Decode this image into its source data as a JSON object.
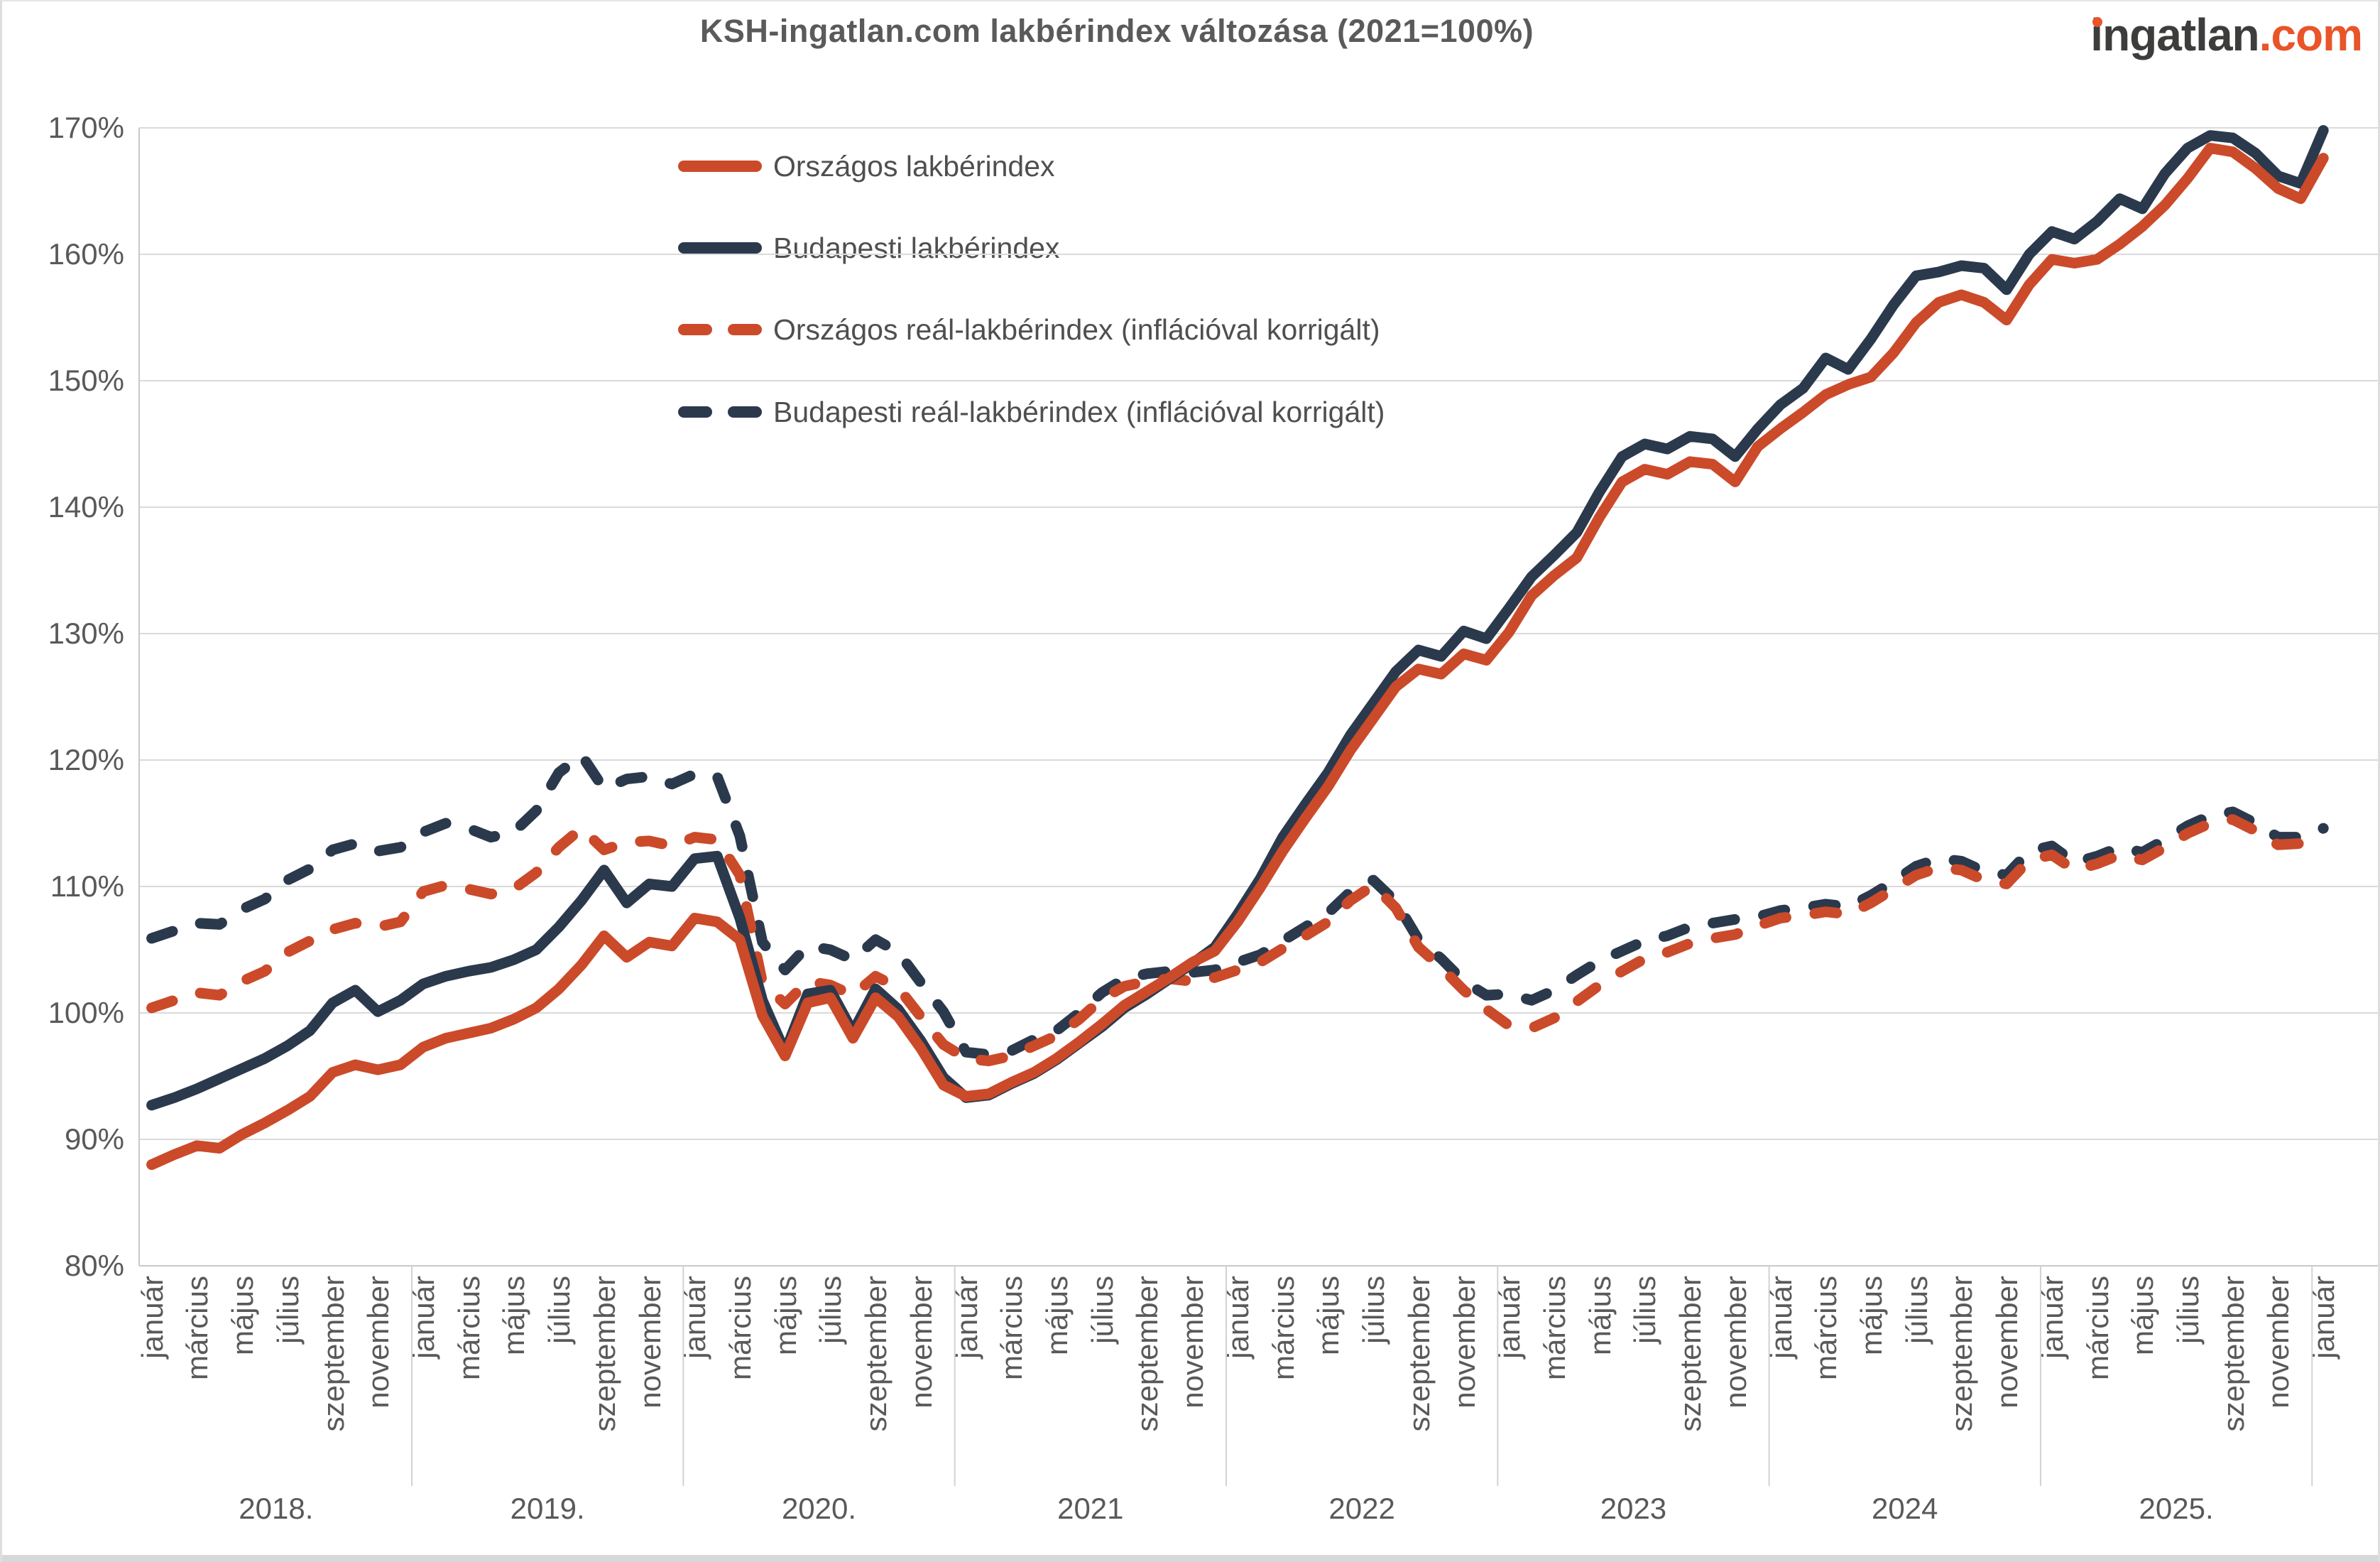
{
  "title": "KSH-ingatlan.com lakbérindex változása (2021=100%)",
  "logo": {
    "main": "ingatlan",
    "tld": ".com",
    "color_main": "#3d3d3c",
    "color_tld": "#e95428"
  },
  "colors": {
    "orange": "#cb4a2a",
    "navy": "#2b394d",
    "gridline": "#dadada",
    "axis_line": "#c9c9c9",
    "tick_text": "#595959",
    "title_text": "#5a5a5a"
  },
  "chart_data": {
    "type": "line",
    "title": "KSH-ingatlan.com lakbérindex változása (2021=100%)",
    "x_start": "2018-01",
    "x_end": "2026-01",
    "x_interval": "monthly",
    "points_per_series": 97,
    "ylim": [
      80,
      170
    ],
    "y_ticks": [
      170,
      160,
      150,
      140,
      130,
      120,
      110,
      100,
      90,
      80
    ],
    "y_tick_suffix": "%",
    "grid": "horizontal",
    "legend_position": "top-left-inside",
    "x_groups": [
      {
        "year": "2018.",
        "months": [
          "január",
          "március",
          "május",
          "július",
          "szeptember",
          "november"
        ]
      },
      {
        "year": "2019.",
        "months": [
          "január",
          "március",
          "május",
          "július",
          "szeptember",
          "november"
        ]
      },
      {
        "year": "2020.",
        "months": [
          "január",
          "március",
          "május",
          "július",
          "szeptember",
          "november"
        ]
      },
      {
        "year": "2021",
        "months": [
          "január",
          "március",
          "május",
          "július",
          "szeptember",
          "november"
        ]
      },
      {
        "year": "2022",
        "months": [
          "január",
          "március",
          "május",
          "július",
          "szeptember",
          "november"
        ]
      },
      {
        "year": "2023",
        "months": [
          "január",
          "március",
          "május",
          "július",
          "szeptember",
          "november"
        ]
      },
      {
        "year": "2024",
        "months": [
          "január",
          "március",
          "május",
          "július",
          "szeptember",
          "november"
        ]
      },
      {
        "year": "2025.",
        "months": [
          "január",
          "március",
          "május",
          "július",
          "szeptember",
          "november"
        ]
      },
      {
        "year": "",
        "months": [
          "január"
        ]
      }
    ],
    "series": [
      {
        "name": "Budapesti reál-lakbérindex (inflációval korrigált)",
        "style": "dashed",
        "color": "#2b394d",
        "values": [
          105.9,
          106.5,
          107.1,
          107.0,
          108.2,
          109.0,
          110.5,
          111.4,
          112.9,
          113.4,
          112.8,
          113.1,
          114.3,
          115.0,
          114.6,
          113.9,
          114.3,
          116.0,
          119.0,
          120.4,
          117.7,
          118.5,
          118.7,
          118.1,
          118.9,
          118.7,
          114.0,
          105.6,
          103.4,
          105.3,
          105.0,
          104.2,
          105.8,
          104.8,
          102.4,
          100.1,
          96.9,
          96.7,
          97.0,
          97.9,
          98.6,
          100.0,
          101.6,
          102.7,
          103.1,
          103.3,
          103.2,
          103.4,
          104.0,
          104.6,
          105.7,
          106.8,
          107.9,
          109.6,
          110.5,
          108.8,
          105.8,
          104.3,
          102.5,
          101.4,
          101.5,
          101.0,
          101.8,
          103.0,
          104.1,
          104.9,
          105.7,
          106.1,
          106.8,
          107.1,
          107.4,
          107.6,
          108.1,
          108.3,
          108.6,
          108.4,
          109.3,
          110.4,
          111.6,
          112.2,
          112.0,
          111.2,
          110.9,
          112.8,
          113.2,
          111.9,
          112.4,
          113.1,
          112.7,
          113.7,
          114.8,
          115.6,
          115.9,
          115.0,
          113.9,
          113.9,
          114.6
        ]
      },
      {
        "name": "Országos reál-lakbérindex (inflációval korrigált)",
        "style": "dashed",
        "color": "#cb4a2a",
        "values": [
          100.4,
          101.0,
          101.6,
          101.4,
          102.5,
          103.3,
          104.8,
          105.7,
          106.6,
          107.1,
          106.8,
          107.2,
          109.6,
          110.1,
          109.8,
          109.4,
          109.8,
          111.1,
          113.1,
          114.6,
          112.9,
          113.5,
          113.6,
          113.2,
          113.9,
          113.7,
          110.9,
          102.4,
          100.7,
          102.5,
          102.2,
          101.4,
          102.9,
          102.0,
          99.7,
          97.5,
          96.4,
          96.2,
          96.6,
          97.4,
          98.2,
          99.5,
          101.1,
          102.1,
          102.5,
          102.7,
          102.5,
          102.8,
          103.4,
          104.0,
          105.1,
          106.1,
          107.2,
          108.9,
          110.1,
          108.3,
          105.2,
          103.6,
          101.8,
          100.3,
          99.0,
          98.8,
          99.6,
          100.9,
          102.2,
          103.3,
          104.3,
          104.8,
          105.5,
          105.9,
          106.2,
          106.9,
          107.5,
          107.7,
          108.0,
          107.8,
          108.7,
          109.8,
          110.9,
          111.5,
          111.3,
          110.5,
          110.2,
          112.1,
          112.5,
          111.3,
          111.8,
          112.5,
          112.1,
          113.1,
          114.2,
          115.0,
          115.3,
          114.4,
          113.3,
          113.4,
          114.1
        ]
      },
      {
        "name": "Budapesti lakbérindex",
        "style": "solid",
        "color": "#2b394d",
        "values": [
          92.7,
          93.3,
          94.0,
          94.8,
          95.6,
          96.4,
          97.4,
          98.6,
          100.8,
          101.8,
          100.1,
          101.0,
          102.3,
          102.9,
          103.3,
          103.6,
          104.2,
          105.0,
          106.8,
          108.9,
          111.3,
          108.7,
          110.2,
          110.0,
          112.2,
          112.4,
          107.5,
          101.0,
          96.9,
          101.5,
          101.8,
          98.5,
          101.9,
          100.3,
          97.8,
          94.9,
          93.3,
          93.5,
          94.4,
          95.2,
          96.3,
          97.6,
          98.9,
          100.4,
          101.5,
          102.7,
          103.9,
          105.2,
          107.8,
          110.6,
          113.9,
          116.5,
          119.0,
          122.0,
          124.5,
          127.0,
          128.7,
          128.2,
          130.2,
          129.6,
          132.0,
          134.5,
          136.2,
          138.0,
          141.2,
          144.0,
          145.0,
          144.6,
          145.6,
          145.4,
          144.0,
          146.2,
          148.1,
          149.4,
          151.8,
          150.9,
          153.3,
          156.0,
          158.3,
          158.6,
          159.1,
          158.9,
          157.2,
          160.0,
          161.8,
          161.2,
          162.6,
          164.4,
          163.6,
          166.4,
          168.4,
          169.4,
          169.2,
          168.0,
          166.2,
          165.6,
          169.8
        ]
      },
      {
        "name": "Országos lakbérindex",
        "style": "solid",
        "color": "#cb4a2a",
        "values": [
          88.0,
          88.8,
          89.5,
          89.3,
          90.4,
          91.3,
          92.3,
          93.4,
          95.3,
          95.9,
          95.5,
          95.9,
          97.3,
          98.0,
          98.4,
          98.8,
          99.5,
          100.4,
          101.9,
          103.8,
          106.1,
          104.4,
          105.6,
          105.3,
          107.5,
          107.2,
          105.8,
          99.8,
          96.6,
          100.8,
          101.2,
          98.0,
          101.2,
          99.7,
          97.2,
          94.3,
          93.4,
          93.6,
          94.5,
          95.3,
          96.4,
          97.7,
          99.1,
          100.6,
          101.7,
          102.8,
          104.0,
          104.9,
          107.2,
          109.9,
          112.8,
          115.4,
          117.9,
          120.8,
          123.3,
          125.8,
          127.2,
          126.8,
          128.4,
          127.9,
          130.1,
          133.0,
          134.6,
          136.0,
          139.2,
          142.0,
          143.0,
          142.6,
          143.6,
          143.4,
          142.0,
          144.8,
          146.2,
          147.5,
          148.9,
          149.7,
          150.3,
          152.2,
          154.6,
          156.2,
          156.8,
          156.2,
          154.8,
          157.6,
          159.6,
          159.3,
          159.6,
          160.8,
          162.2,
          163.9,
          166.0,
          168.4,
          168.1,
          166.8,
          165.2,
          164.4,
          167.6
        ]
      }
    ]
  },
  "legend": {
    "items": [
      {
        "label": "Országos lakbérindex",
        "style": "solid",
        "color": "#cb4a2a"
      },
      {
        "label": "Budapesti lakbérindex",
        "style": "solid",
        "color": "#2b394d"
      },
      {
        "label": "Országos reál-lakbérindex (inflációval korrigált)",
        "style": "dashed",
        "color": "#cb4a2a"
      },
      {
        "label": "Budapesti reál-lakbérindex (inflációval korrigált)",
        "style": "dashed",
        "color": "#2b394d"
      }
    ]
  }
}
